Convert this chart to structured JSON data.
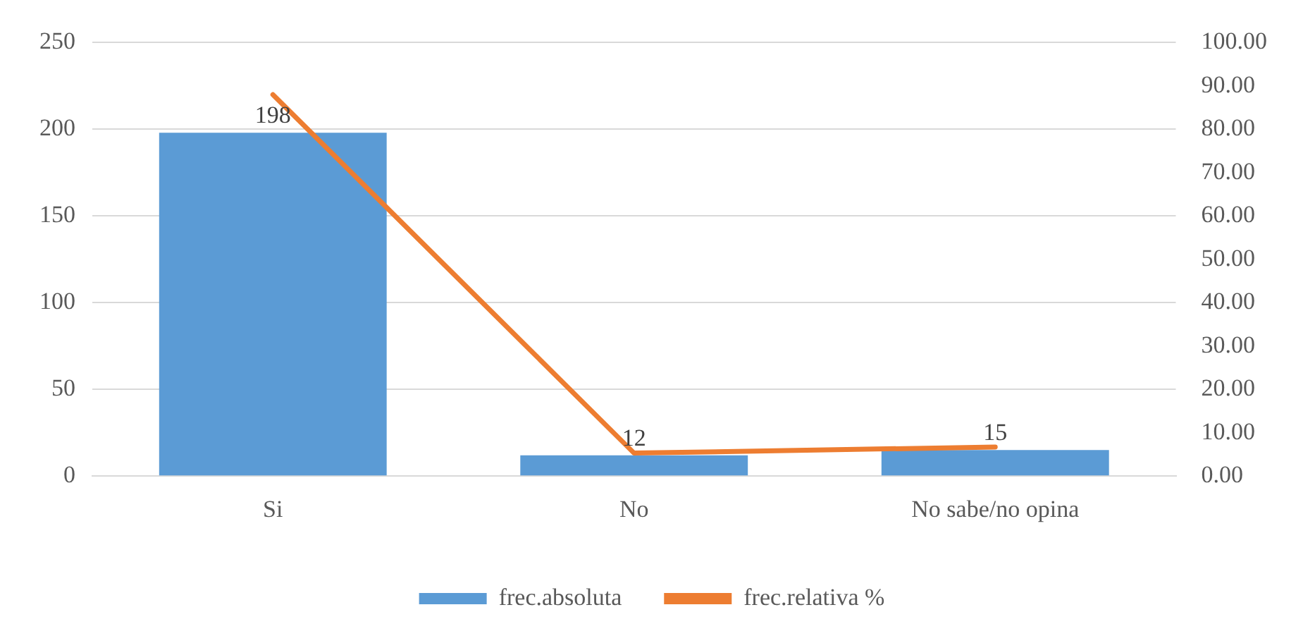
{
  "chart_data": {
    "type": "bar",
    "categories": [
      "Si",
      "No",
      "No sabe/no opina"
    ],
    "series": [
      {
        "name": "frec.absoluta",
        "color": "#5b9bd5",
        "values": [
          198,
          12,
          15
        ],
        "value_labels": [
          "198",
          "12",
          "15"
        ]
      },
      {
        "name": "frec.relativa %",
        "type": "line",
        "axis": "y2",
        "color": "#ed7d31",
        "values": [
          88,
          5.3,
          6.7
        ],
        "marker": "none"
      }
    ],
    "ylim": [
      0,
      250
    ],
    "yticks": [
      0,
      50,
      100,
      150,
      200,
      250
    ],
    "y2lim": [
      0,
      100
    ],
    "y2ticks": [
      {
        "value": 0,
        "label": "0.00"
      },
      {
        "value": 10,
        "label": "10.00"
      },
      {
        "value": 20,
        "label": "20.00"
      },
      {
        "value": 30,
        "label": "30.00"
      },
      {
        "value": 40,
        "label": "40.00"
      },
      {
        "value": 50,
        "label": "50.00"
      },
      {
        "value": 60,
        "label": "60.00"
      },
      {
        "value": 70,
        "label": "70.00"
      },
      {
        "value": 80,
        "label": "80.00"
      },
      {
        "value": 90,
        "label": "90.00"
      },
      {
        "value": 100,
        "label": "100.00"
      }
    ],
    "grid": "y",
    "legend": "bottom"
  }
}
